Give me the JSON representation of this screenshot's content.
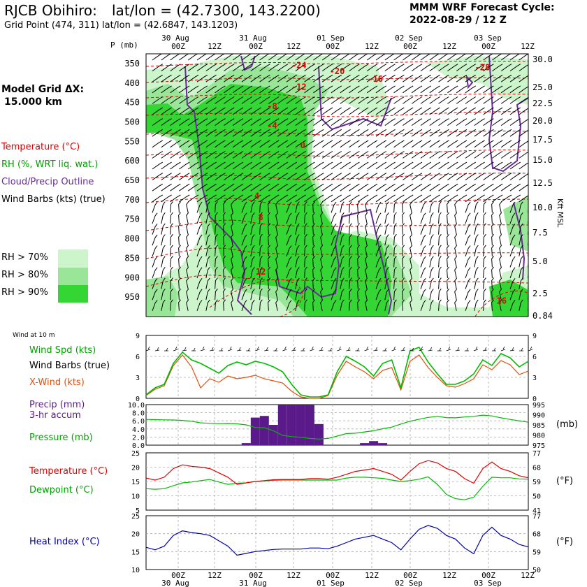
{
  "header": {
    "station": "RJCB Obihiro:",
    "latlon": "lat/lon = (42.7300, 143.2200)",
    "grid_point": "Grid Point (474, 311) lat/lon = (42.6847, 143.1203)",
    "model_title": "MMM WRF Forecast Cycle:",
    "cycle": "2022-08-29 / 12  Z"
  },
  "left_legend": {
    "model_grid": "Model Grid ΔX:",
    "grid_km": "15.000 km",
    "temperature": "Temperature (°C)",
    "rh": "RH (%, WRT liq. wat.)",
    "cloud": "Cloud/Precip Outline",
    "wind": "Wind Barbs (kts) (true)",
    "rh70": "RH > 70%",
    "rh80": "RH > 80%",
    "rh90": "RH > 90%",
    "wind10m": "Wind at 10 m",
    "wind_spd": "Wind Spd (kts)",
    "wind_barbs": "Wind Barbs (true)",
    "xwind": "X-Wind (kts)",
    "precip": "Precip (mm)",
    "precip2": "3-hr accum",
    "pressure": "Pressure (mb)",
    "temp2": "Temperature (°C)",
    "dewpoint": "Dewpoint (°C)",
    "heat_index": "Heat Index (°C)"
  },
  "right_units": {
    "kft": "Kft MSL",
    "mb": "(mb)",
    "degf1": "(°F)",
    "degf2": "(°F)"
  },
  "colors": {
    "temperature": "#e00000",
    "rh70": "#ccf5cc",
    "rh80": "#99e699",
    "rh90": "#33d633",
    "cloud": "#6a2a9a",
    "green_line": "#00bb00",
    "xwind": "#e05010",
    "precip": "#5a1a8a",
    "heat": "#0000aa"
  },
  "time_axis": {
    "top_dates": [
      "30 Aug",
      "31 Aug",
      "01 Sep",
      "02 Sep",
      "03 Sep"
    ],
    "hours": [
      "00Z",
      "12Z",
      "00Z",
      "12Z",
      "00Z",
      "12Z",
      "00Z",
      "12Z",
      "00Z",
      "12Z"
    ],
    "bottom_dates": [
      "30 Aug",
      "31 Aug",
      "01 Sep",
      "02 Sep",
      "03 Sep"
    ],
    "p_label": "P (mb)"
  },
  "chart_data": [
    {
      "type": "contour-timeheight",
      "title": "Time-height cross section",
      "pressure_levels": [
        "350",
        "400",
        "450",
        "500",
        "550",
        "600",
        "650",
        "700",
        "750",
        "800",
        "850",
        "900",
        "950"
      ],
      "height_kft": [
        "30.0",
        "25.0",
        "22.5",
        "20.0",
        "17.5",
        "15.0",
        "12.5",
        "10.0",
        "7.5",
        "5.0",
        "2.5",
        "0.84"
      ],
      "temperature_labels": [
        {
          "text": "-24",
          "t": 0.4,
          "p": 355
        },
        {
          "text": "-20",
          "t": 0.5,
          "p": 370
        },
        {
          "text": "-16",
          "t": 0.6,
          "p": 390
        },
        {
          "text": "-12",
          "t": 0.4,
          "p": 410
        },
        {
          "text": "-8",
          "t": 0.33,
          "p": 460
        },
        {
          "text": "-4",
          "t": 0.33,
          "p": 510
        },
        {
          "text": "0",
          "t": 0.41,
          "p": 560
        },
        {
          "text": "4",
          "t": 0.29,
          "p": 690
        },
        {
          "text": "8",
          "t": 0.3,
          "p": 745
        },
        {
          "text": "12",
          "t": 0.3,
          "p": 885
        },
        {
          "text": "16",
          "t": 0.93,
          "p": 960
        },
        {
          "text": "-28",
          "t": 0.88,
          "p": 360
        }
      ]
    },
    {
      "type": "line",
      "title": "Wind at 10 m",
      "ylim": [
        0,
        9
      ],
      "yticks": [
        "9",
        "6",
        "3",
        "0"
      ],
      "series": [
        {
          "name": "Wind Spd (kts)",
          "values": [
            0.5,
            1.5,
            2,
            5,
            6.6,
            5.5,
            5,
            4.3,
            3.6,
            4.7,
            5.2,
            4.8,
            5.3,
            5,
            4.5,
            3.8,
            2,
            0.5,
            0.2,
            0.2,
            0.5,
            3.8,
            6,
            5.3,
            4.5,
            3.2,
            5,
            5.5,
            1.5,
            6.8,
            7.3,
            5.2,
            3.5,
            2,
            2,
            2.5,
            3.5,
            5.5,
            4.7,
            6.4,
            5.8,
            4.5,
            5.3
          ]
        },
        {
          "name": "X-Wind (kts)",
          "values": [
            0.4,
            1.3,
            1.8,
            4.7,
            6.2,
            4.5,
            1.5,
            2.8,
            2.3,
            3.2,
            2.8,
            3,
            3.3,
            2.8,
            2.5,
            2.2,
            1,
            0.2,
            0,
            0,
            0.4,
            3.3,
            5.3,
            4.5,
            3.8,
            2.8,
            4,
            4.4,
            1.2,
            5.3,
            6.2,
            4.4,
            3,
            1.8,
            1.6,
            2.1,
            2.8,
            4.8,
            4.1,
            5.4,
            4.8,
            3.4,
            3.9
          ]
        }
      ]
    },
    {
      "type": "bar-line",
      "title": "Precip (mm) 3-hr accum / Pressure (mb)",
      "precip_ylim": [
        0,
        10
      ],
      "precip_yticks": [
        "10.0",
        "8.0",
        "6.0",
        "4.0",
        "2.0",
        "0.0"
      ],
      "pressure_yticks": [
        "995",
        "990",
        "985",
        "980",
        "975"
      ],
      "precip": [
        0,
        0,
        0,
        0,
        0,
        0,
        0,
        0,
        0,
        0,
        0,
        0.5,
        6.8,
        7.2,
        5,
        10,
        10,
        10,
        10,
        5.2,
        0,
        0,
        0,
        0,
        0.5,
        1,
        0.5,
        0,
        0,
        0,
        0,
        0,
        0,
        0,
        0,
        0,
        0,
        0,
        0,
        0,
        0,
        0,
        0
      ],
      "pressure": [
        987.7,
        987.6,
        987.5,
        987.4,
        987.2,
        986.8,
        986,
        985.8,
        985.6,
        985.7,
        985.5,
        985,
        983.7,
        983.6,
        982.1,
        979.8,
        979.2,
        978.9,
        978.3,
        978,
        978.3,
        979.5,
        980.7,
        980.9,
        981.5,
        982.1,
        983.1,
        983.9,
        985.4,
        986.8,
        987.8,
        988.7,
        989.2,
        988.6,
        988.5,
        988.9,
        989.2,
        989.8,
        989.4,
        988.5,
        987.7,
        987,
        986.3
      ]
    },
    {
      "type": "line",
      "title": "Temperature / Dewpoint",
      "ylim": [
        5,
        25
      ],
      "yticks": [
        "25",
        "20",
        "15",
        "10",
        "5"
      ],
      "yticks_f": [
        "77",
        "68",
        "59",
        "50",
        "41"
      ],
      "series": [
        {
          "name": "Temperature (°C)",
          "values": [
            16.2,
            15.5,
            16.5,
            19.5,
            20.8,
            20.3,
            20,
            19.5,
            18,
            16.5,
            14,
            14.5,
            15,
            15.3,
            15.6,
            15.7,
            15.7,
            15.7,
            16,
            16,
            15.8,
            16.5,
            17.5,
            18.5,
            19,
            19.5,
            18.5,
            17.5,
            15.5,
            18.5,
            21.2,
            22.3,
            21.5,
            19.5,
            18.5,
            16,
            14.4,
            19.5,
            21.8,
            19.5,
            18.5,
            17,
            16.3
          ]
        },
        {
          "name": "Dewpoint (°C)",
          "values": [
            12.5,
            12.3,
            12.5,
            13.5,
            14.5,
            14.8,
            15.3,
            15.7,
            14.8,
            14,
            14.4,
            14.5,
            15,
            15.2,
            15.4,
            15.5,
            15.5,
            15.5,
            15.5,
            15.5,
            15.5,
            15.5,
            16.2,
            16.5,
            16.5,
            16.3,
            16.1,
            15.5,
            15,
            15.3,
            15.8,
            16.6,
            14,
            10.5,
            9,
            8.6,
            9.5,
            13.3,
            16.5,
            16.3,
            16.3,
            15.9,
            15.8
          ]
        }
      ]
    },
    {
      "type": "line",
      "title": "Heat Index",
      "ylim": [
        10,
        25
      ],
      "yticks": [
        "25",
        "20",
        "15",
        "10"
      ],
      "yticks_f": [
        "77",
        "68",
        "59",
        "50"
      ],
      "series": [
        {
          "name": "Heat Index (°C)",
          "values": [
            16.2,
            15.5,
            16.5,
            19.5,
            20.8,
            20.3,
            20,
            19.5,
            18,
            16.5,
            14,
            14.5,
            15,
            15.3,
            15.6,
            15.7,
            15.7,
            15.7,
            16,
            16,
            15.8,
            16.5,
            17.5,
            18.5,
            19,
            19.5,
            18.5,
            17.5,
            15.5,
            18.5,
            21.2,
            22.3,
            21.5,
            19.5,
            18.5,
            16,
            14.4,
            19.5,
            21.8,
            19.5,
            18.5,
            17,
            16.3
          ]
        }
      ]
    }
  ]
}
